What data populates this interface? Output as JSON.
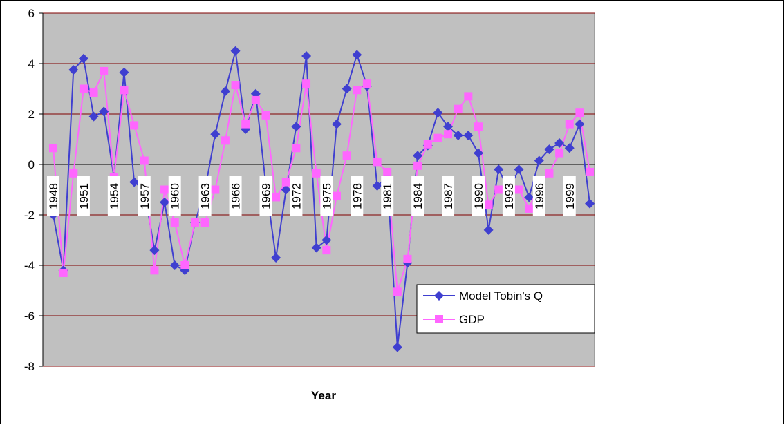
{
  "chart_data": {
    "type": "line",
    "x_label": "Year",
    "categories": [
      "1948",
      null,
      null,
      "1951",
      null,
      null,
      "1954",
      null,
      null,
      "1957",
      null,
      null,
      "1960",
      null,
      null,
      "1963",
      null,
      null,
      "1966",
      null,
      null,
      "1969",
      null,
      null,
      "1972",
      null,
      null,
      "1975",
      null,
      null,
      "1978",
      null,
      null,
      "1981",
      null,
      null,
      "1984",
      null,
      null,
      "1987",
      null,
      null,
      "1990",
      null,
      null,
      "1993",
      null,
      null,
      "1996",
      null,
      null,
      "1999",
      null,
      null
    ],
    "series": [
      {
        "name": "Model Tobin's Q",
        "color": "#3f3fd0",
        "marker": "diamond",
        "values": [
          -2.0,
          -4.2,
          3.75,
          4.2,
          1.9,
          2.1,
          -0.5,
          3.65,
          -0.7,
          -1.0,
          -3.4,
          -1.5,
          -4.0,
          -4.2,
          -2.3,
          -1.0,
          1.2,
          2.9,
          4.5,
          1.4,
          2.8,
          -0.8,
          -3.7,
          -1.0,
          1.5,
          4.3,
          -3.3,
          -3.0,
          1.6,
          3.0,
          4.35,
          3.1,
          -0.85,
          -0.5,
          -7.25,
          -3.9,
          0.35,
          0.75,
          2.05,
          1.5,
          1.15,
          1.15,
          0.45,
          -2.6,
          -0.2,
          -1.0,
          -0.2,
          -1.3,
          0.15,
          0.6,
          0.85,
          0.65,
          1.6,
          -1.55
        ]
      },
      {
        "name": "GDP",
        "color": "#ff66ff",
        "marker": "square",
        "values": [
          0.65,
          -4.3,
          -0.35,
          3.0,
          2.85,
          3.7,
          -0.5,
          2.95,
          1.55,
          0.15,
          -4.2,
          -1.0,
          -2.3,
          -4.0,
          -2.3,
          -2.3,
          -1.0,
          0.95,
          3.15,
          1.6,
          2.55,
          1.95,
          -1.3,
          -0.7,
          0.65,
          3.2,
          -0.35,
          -3.4,
          -1.25,
          0.35,
          2.95,
          3.2,
          0.1,
          -0.3,
          -5.05,
          -3.75,
          -0.05,
          0.8,
          1.05,
          1.2,
          2.2,
          2.7,
          1.5,
          -1.6,
          -1.0,
          -1.2,
          -1.0,
          -1.75,
          -0.8,
          -0.35,
          0.45,
          1.6,
          2.05,
          -0.3
        ]
      }
    ],
    "ylim": [
      -8,
      6
    ],
    "yticks": [
      -8,
      -6,
      -4,
      -2,
      0,
      2,
      4,
      6
    ],
    "grid": true,
    "legend": "lower-right"
  }
}
